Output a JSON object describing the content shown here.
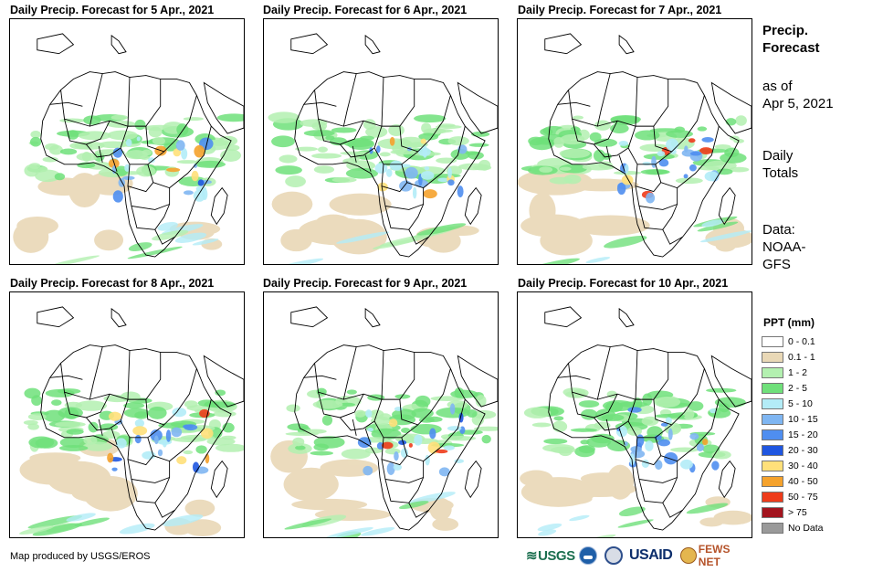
{
  "panels": [
    {
      "title": "Daily Precip. Forecast for 5 Apr., 2021"
    },
    {
      "title": "Daily Precip. Forecast for 6 Apr., 2021"
    },
    {
      "title": "Daily Precip. Forecast for 7 Apr., 2021"
    },
    {
      "title": "Daily Precip. Forecast for 8 Apr., 2021"
    },
    {
      "title": "Daily Precip. Forecast for 9 Apr., 2021"
    },
    {
      "title": "Daily Precip. Forecast for 10 Apr., 2021"
    }
  ],
  "side": {
    "heading_line1": "Precip.",
    "heading_line2": "Forecast",
    "asof_line1": "as of",
    "asof_line2": "Apr 5, 2021",
    "totals_line1": "Daily",
    "totals_line2": "Totals",
    "data_line1": "Data:",
    "data_line2": "NOAA-",
    "data_line3": "GFS"
  },
  "legend": {
    "title": "PPT (mm)",
    "items": [
      {
        "label": "0 - 0.1",
        "color": "#ffffff"
      },
      {
        "label": "0.1 - 1",
        "color": "#e9d8b6"
      },
      {
        "label": "1 - 2",
        "color": "#b3f0b0"
      },
      {
        "label": "2 - 5",
        "color": "#6fe07a"
      },
      {
        "label": "5 - 10",
        "color": "#b3ecf7"
      },
      {
        "label": "10 - 15",
        "color": "#7fb6f2"
      },
      {
        "label": "15 - 20",
        "color": "#4f8ef0"
      },
      {
        "label": "20 - 30",
        "color": "#1f56e0"
      },
      {
        "label": "30 - 40",
        "color": "#ffe07a"
      },
      {
        "label": "40 - 50",
        "color": "#f5a22c"
      },
      {
        "label": "50 - 75",
        "color": "#ee3b1a"
      },
      {
        "label": "> 75",
        "color": "#a3141e"
      },
      {
        "label": "No Data",
        "color": "#9a9a9a"
      }
    ]
  },
  "credit": "Map produced by USGS/EROS",
  "logos": {
    "usgs": "USGS",
    "usaid": "USAID",
    "fews": "FEWS NET"
  }
}
